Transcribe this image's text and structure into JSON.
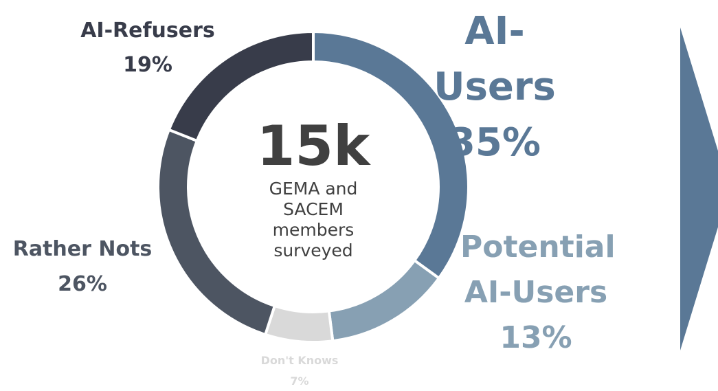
{
  "chart_data": {
    "type": "donut",
    "center_title": "15k",
    "center_text": "GEMA and SACEM members surveyed",
    "categories": [
      "AI-Users",
      "Potential AI-Users",
      "Don't Knows",
      "Rather Nots",
      "AI-Refusers"
    ],
    "values": [
      35,
      13,
      7,
      26,
      19
    ],
    "value_labels": [
      "35%",
      "13%",
      "7%",
      "26%",
      "19%"
    ],
    "colors": [
      "#5a7896",
      "#87a0b3",
      "#d9d9d9",
      "#4d5562",
      "#383c4a"
    ]
  }
}
